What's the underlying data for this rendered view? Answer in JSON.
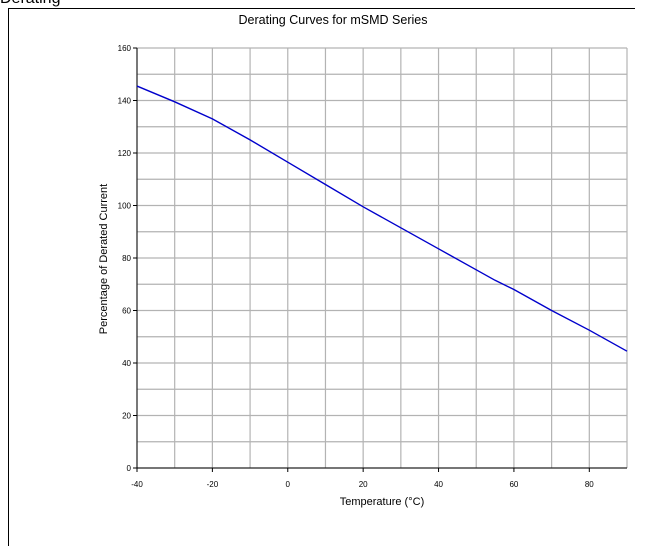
{
  "top_text": "Derating",
  "chart_data": {
    "type": "line",
    "title": "Derating Curves for mSMD Series",
    "xlabel": "Temperature (°C)",
    "ylabel": "Percentage of Derated Current",
    "xlim": [
      -40,
      90
    ],
    "ylim": [
      0,
      160
    ],
    "x_ticks": [
      -40,
      -20,
      0,
      20,
      40,
      60,
      80
    ],
    "y_ticks": [
      0,
      20,
      40,
      60,
      80,
      100,
      120,
      140,
      160
    ],
    "x_minor_step": 10,
    "y_minor_step": 10,
    "grid": true,
    "line_color": "#0000cc",
    "grid_color": "#b3b3b3",
    "series": [
      {
        "x": [
          -40,
          -30,
          -20,
          -10,
          0,
          10,
          20,
          30,
          40,
          50,
          55,
          60,
          70,
          80,
          90
        ],
        "y": [
          145.5,
          139.5,
          133,
          125,
          116.5,
          108,
          99.5,
          91.5,
          83.5,
          75.5,
          71.5,
          68,
          60,
          52.5,
          44.5
        ]
      }
    ]
  }
}
